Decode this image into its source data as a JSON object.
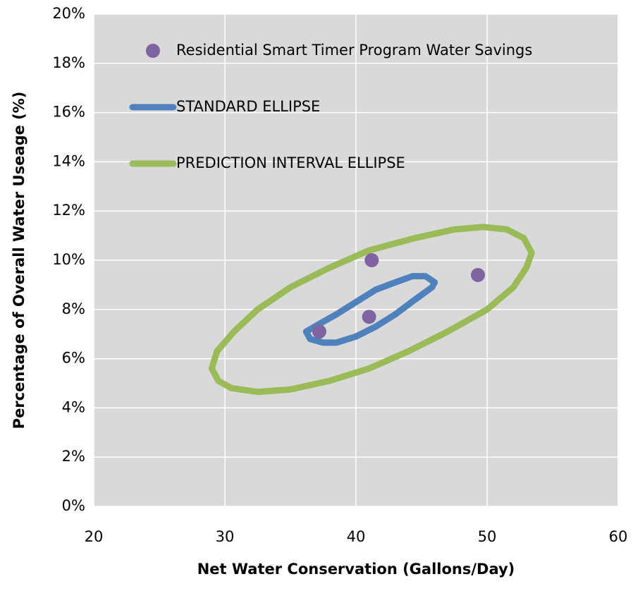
{
  "chart_data": {
    "type": "scatter",
    "xlabel": "Net Water Conservation (Gallons/Day)",
    "ylabel": "Percentage of Overall Water Useage (%)",
    "xlim": [
      20,
      60
    ],
    "xticks": [
      20,
      30,
      40,
      50,
      60
    ],
    "ylim": [
      0,
      20
    ],
    "yticks": [
      {
        "value": 0,
        "label": "0%"
      },
      {
        "value": 2,
        "label": "2%"
      },
      {
        "value": 4,
        "label": "4%"
      },
      {
        "value": 6,
        "label": "6%"
      },
      {
        "value": 8,
        "label": "8%"
      },
      {
        "value": 10,
        "label": "10%"
      },
      {
        "value": 12,
        "label": "12%"
      },
      {
        "value": 14,
        "label": "14%"
      },
      {
        "value": 16,
        "label": "16%"
      },
      {
        "value": 18,
        "label": "18%"
      },
      {
        "value": 20,
        "label": "20%"
      }
    ],
    "grid": true,
    "plot_background": "#d9d9d9",
    "legend": "upper left",
    "series": [
      {
        "name": "Residential Smart Timer Program Water Savings",
        "type": "scatter",
        "color": "#8064a2",
        "x": [
          37.2,
          41.2,
          41.0,
          49.3
        ],
        "y": [
          7.1,
          10.0,
          7.7,
          9.4
        ]
      },
      {
        "name": "STANDARD ELLIPSE",
        "type": "line",
        "color": "#4f81bd",
        "x": [
          36.2,
          36.5,
          37.5,
          38.5,
          40,
          41.5,
          43,
          44.5,
          45.8,
          46.0,
          45.3,
          44.3,
          43,
          41.5,
          40,
          38.5,
          37,
          36.2
        ],
        "y": [
          7.1,
          6.8,
          6.65,
          6.65,
          6.9,
          7.3,
          7.8,
          8.4,
          8.9,
          9.1,
          9.35,
          9.35,
          9.1,
          8.8,
          8.3,
          7.8,
          7.35,
          7.1
        ]
      },
      {
        "name": "PREDICTION INTERVAL ELLIPSE",
        "type": "line",
        "color": "#9bbb59",
        "x": [
          29,
          29.5,
          30.5,
          32.5,
          35,
          38,
          41,
          44,
          47,
          50,
          52,
          53,
          53.4,
          52.8,
          51.5,
          49.7,
          47.5,
          44.5,
          41,
          38,
          35,
          32.5,
          30.7,
          29.4,
          29
        ],
        "y": [
          5.6,
          5.1,
          4.8,
          4.65,
          4.75,
          5.1,
          5.6,
          6.3,
          7.1,
          8.0,
          8.9,
          9.7,
          10.3,
          10.9,
          11.25,
          11.35,
          11.25,
          10.9,
          10.4,
          9.7,
          8.9,
          8.0,
          7.1,
          6.3,
          5.6
        ]
      }
    ]
  }
}
